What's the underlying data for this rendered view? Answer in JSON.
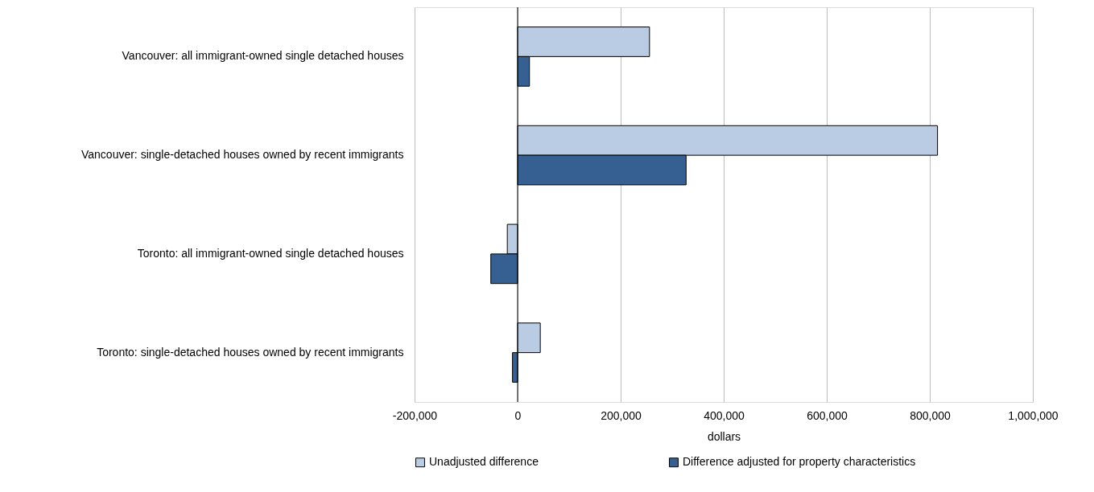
{
  "chart_data": {
    "type": "bar",
    "orientation": "horizontal",
    "xlabel": "dollars",
    "categories": [
      "Vancouver: all immigrant-owned single detached houses",
      "Vancouver: single-detached houses owned by recent immigrants",
      "Toronto: all immigrant-owned single detached houses",
      "Toronto: single-detached houses owned by recent immigrants"
    ],
    "series": [
      {
        "name": "Unadjusted difference",
        "color": "#b9cce4",
        "values": [
          256000,
          815000,
          -20000,
          44000
        ]
      },
      {
        "name": "Difference adjusted for property characteristics",
        "color": "#366092",
        "values": [
          23000,
          327000,
          -52000,
          -10000
        ]
      }
    ],
    "xlim": [
      -200000,
      1000000
    ],
    "xticks": [
      {
        "value": -200000,
        "label": "-200,000"
      },
      0,
      {
        "value": 200000,
        "label": "200,000"
      },
      {
        "value": 400000,
        "label": "400,000"
      },
      {
        "value": 600000,
        "label": "600,000"
      },
      {
        "value": 800000,
        "label": "800,000"
      },
      {
        "value": 1000000,
        "label": "1,000,000"
      }
    ],
    "ref_lines": [
      {
        "axis": "x",
        "value": 0,
        "color": "#000000"
      }
    ],
    "grid": "x",
    "legend": "bottom"
  }
}
